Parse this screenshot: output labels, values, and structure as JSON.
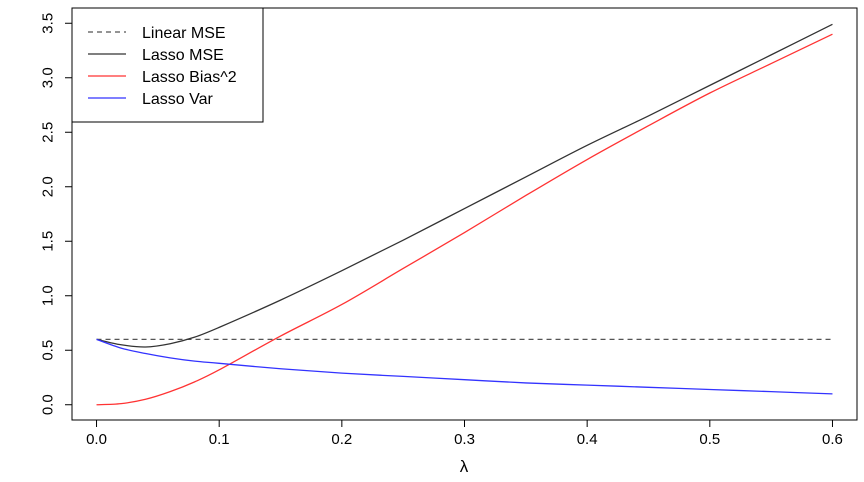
{
  "chart_data": {
    "type": "line",
    "xlabel": "λ",
    "ylabel": "",
    "xlim": [
      -0.02,
      0.62
    ],
    "ylim": [
      -0.14,
      3.64
    ],
    "xticks": [
      0.0,
      0.1,
      0.2,
      0.3,
      0.4,
      0.5,
      0.6
    ],
    "xtick_labels": [
      "0.0",
      "0.1",
      "0.2",
      "0.3",
      "0.4",
      "0.5",
      "0.6"
    ],
    "yticks": [
      0.0,
      0.5,
      1.0,
      1.5,
      2.0,
      2.5,
      3.0,
      3.5
    ],
    "ytick_labels": [
      "0.0",
      "0.5",
      "1.0",
      "1.5",
      "2.0",
      "2.5",
      "3.0",
      "3.5"
    ],
    "grid": false,
    "legend_position": "top-left",
    "x": [
      0.0,
      0.02,
      0.04,
      0.06,
      0.08,
      0.1,
      0.15,
      0.2,
      0.25,
      0.3,
      0.35,
      0.4,
      0.45,
      0.5,
      0.55,
      0.6
    ],
    "series": [
      {
        "name": "Linear MSE",
        "color": "#555555",
        "style": "dashed",
        "x": [
          0.0,
          0.6
        ],
        "values": [
          0.6,
          0.6
        ]
      },
      {
        "name": "Lasso MSE",
        "color": "#333333",
        "style": "solid",
        "values": [
          0.6,
          0.55,
          0.53,
          0.56,
          0.62,
          0.71,
          0.96,
          1.23,
          1.51,
          1.8,
          2.09,
          2.38,
          2.65,
          2.93,
          3.21,
          3.49
        ]
      },
      {
        "name": "Lasso Bias^2",
        "color": "#ff3333",
        "style": "solid",
        "values": [
          0.0,
          0.01,
          0.05,
          0.12,
          0.21,
          0.32,
          0.63,
          0.92,
          1.25,
          1.58,
          1.92,
          2.25,
          2.56,
          2.86,
          3.13,
          3.4
        ]
      },
      {
        "name": "Lasso Var",
        "color": "#3333ff",
        "style": "solid",
        "values": [
          0.6,
          0.52,
          0.47,
          0.43,
          0.4,
          0.38,
          0.33,
          0.29,
          0.26,
          0.23,
          0.2,
          0.18,
          0.16,
          0.14,
          0.12,
          0.1
        ]
      }
    ]
  }
}
